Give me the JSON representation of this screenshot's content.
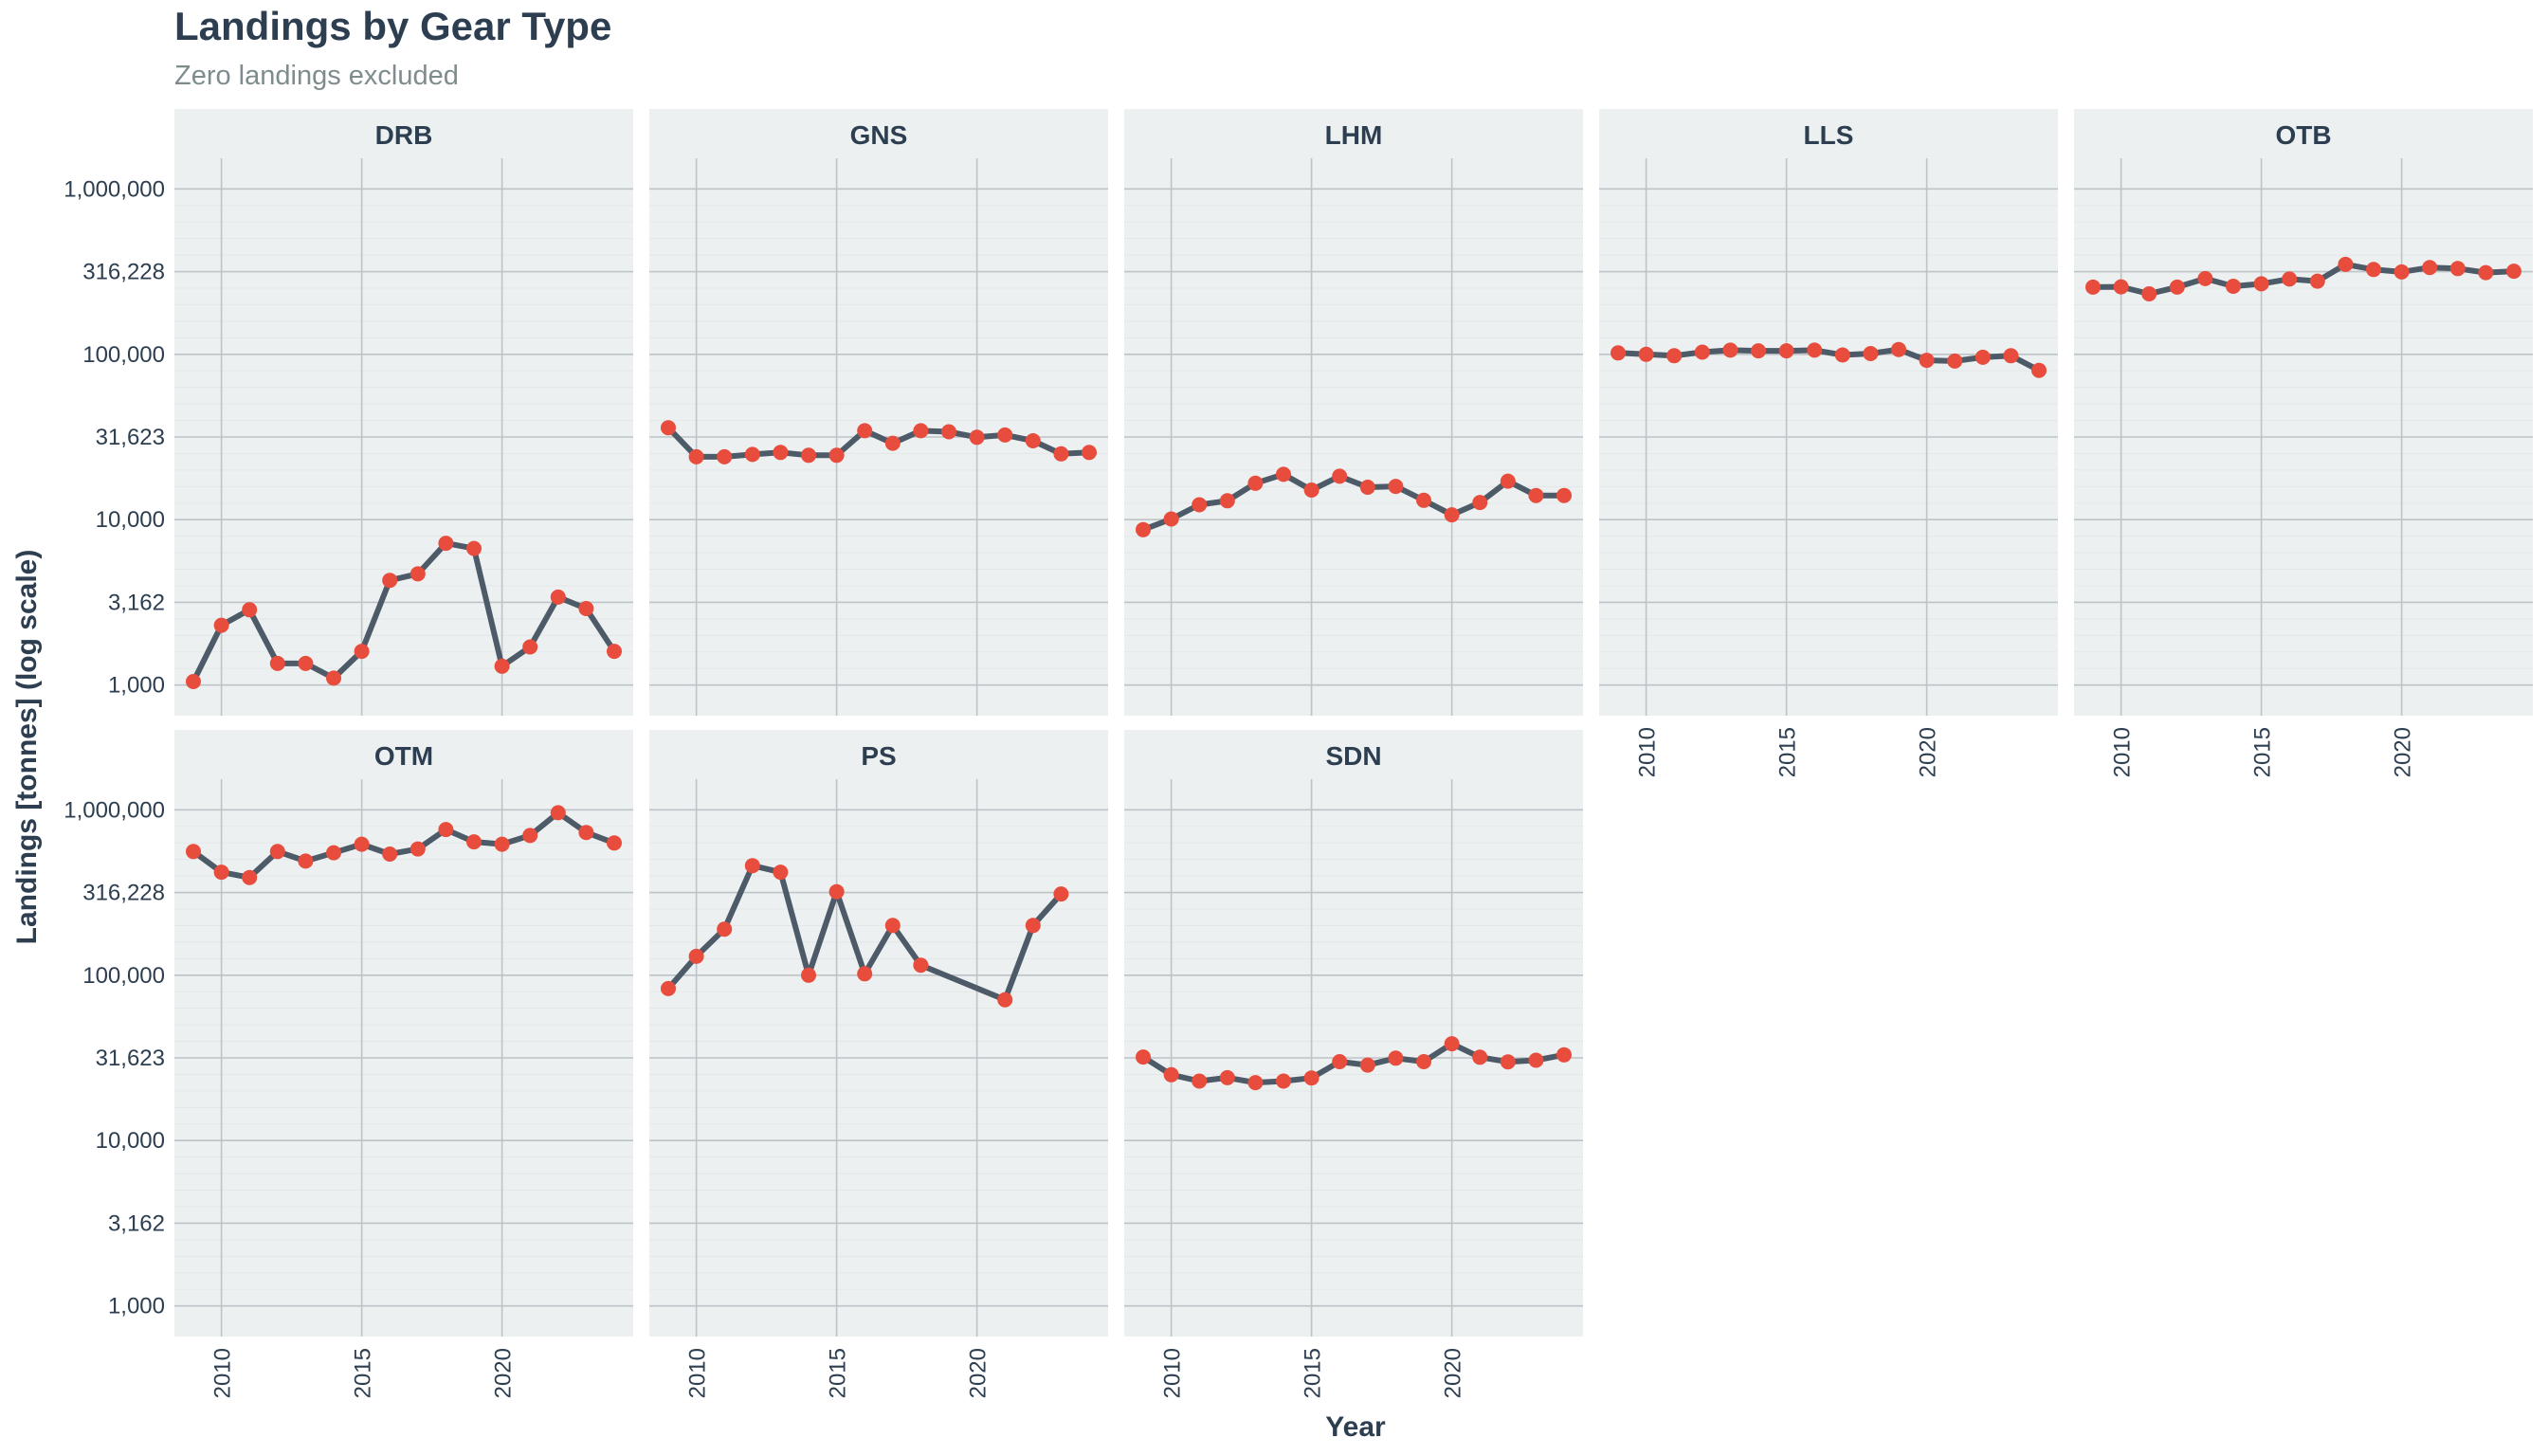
{
  "title": "Landings by Gear Type",
  "subtitle": "Zero landings excluded",
  "colors": {
    "panel_bg": "#ecf0f1",
    "strip_bg": "#ecf0f1",
    "grid_major": "#bdc3c7",
    "grid_minor": "#e3e7e8",
    "line": "#4d5a67",
    "point": "#e74c3c",
    "text": "#2c3e50",
    "subtitle": "#7f8c8d"
  },
  "chart_data": {
    "type": "line",
    "title": "Landings by Gear Type",
    "subtitle": "Zero landings excluded",
    "xlabel": "Year",
    "ylabel": "Landings [tonnes] (log scale)",
    "yscale": "log",
    "ylim": [
      1000,
      1000000
    ],
    "xlim": [
      2009,
      2024
    ],
    "x_ticks": [
      2010,
      2015,
      2020
    ],
    "y_ticks": [
      1000,
      3162,
      10000,
      31623,
      100000,
      316228,
      1000000
    ],
    "y_tick_labels": [
      "1,000",
      "3,162",
      "10,000",
      "31,623",
      "100,000",
      "316,228",
      "1,000,000"
    ],
    "grid": true,
    "legend": "none",
    "facets": [
      "DRB",
      "GNS",
      "LHM",
      "LLS",
      "OTB",
      "OTM",
      "PS",
      "SDN"
    ],
    "series": [
      {
        "name": "DRB",
        "x": [
          2009,
          2010,
          2011,
          2012,
          2013,
          2014,
          2015,
          2016,
          2017,
          2018,
          2019,
          2020,
          2021,
          2022,
          2023,
          2024
        ],
        "values": [
          1050,
          2300,
          2850,
          1350,
          1350,
          1100,
          1600,
          4300,
          4700,
          7200,
          6700,
          1300,
          1700,
          3400,
          2900,
          1600
        ]
      },
      {
        "name": "GNS",
        "x": [
          2009,
          2010,
          2011,
          2012,
          2013,
          2014,
          2015,
          2016,
          2017,
          2018,
          2019,
          2020,
          2021,
          2022,
          2023,
          2024
        ],
        "values": [
          36000,
          24000,
          24000,
          24800,
          25500,
          24500,
          24500,
          34500,
          29000,
          34500,
          34000,
          31500,
          32500,
          30000,
          25000,
          25500
        ]
      },
      {
        "name": "LHM",
        "x": [
          2009,
          2010,
          2011,
          2012,
          2013,
          2014,
          2015,
          2016,
          2017,
          2018,
          2019,
          2020,
          2021,
          2022,
          2023,
          2024
        ],
        "values": [
          8700,
          10100,
          12300,
          13000,
          16600,
          18800,
          15100,
          18300,
          15700,
          15900,
          13100,
          10700,
          12700,
          17100,
          14000,
          14000
        ]
      },
      {
        "name": "LLS",
        "x": [
          2009,
          2010,
          2011,
          2012,
          2013,
          2014,
          2015,
          2016,
          2017,
          2018,
          2019,
          2020,
          2021,
          2022,
          2023,
          2024
        ],
        "values": [
          102000,
          100000,
          98000,
          103000,
          106000,
          105000,
          105000,
          106000,
          99000,
          101000,
          107000,
          92000,
          91000,
          96000,
          98000,
          80000
        ]
      },
      {
        "name": "OTB",
        "x": [
          2009,
          2010,
          2011,
          2012,
          2013,
          2014,
          2015,
          2016,
          2017,
          2018,
          2019,
          2020,
          2021,
          2022,
          2023,
          2024
        ],
        "values": [
          255000,
          256000,
          232000,
          255000,
          287000,
          258000,
          267000,
          285000,
          277000,
          350000,
          326000,
          315000,
          335000,
          330000,
          312000,
          318000
        ]
      },
      {
        "name": "OTM",
        "x": [
          2009,
          2010,
          2011,
          2012,
          2013,
          2014,
          2015,
          2016,
          2017,
          2018,
          2019,
          2020,
          2021,
          2022,
          2023,
          2024
        ],
        "values": [
          560000,
          420000,
          390000,
          560000,
          490000,
          550000,
          620000,
          540000,
          580000,
          760000,
          640000,
          620000,
          700000,
          960000,
          730000,
          630000
        ]
      },
      {
        "name": "PS",
        "x": [
          2009,
          2010,
          2011,
          2012,
          2013,
          2014,
          2015,
          2016,
          2017,
          2018,
          2021,
          2022,
          2023
        ],
        "values": [
          83000,
          130000,
          190000,
          460000,
          420000,
          100000,
          320000,
          102000,
          200000,
          115000,
          71000,
          200000,
          310000
        ]
      },
      {
        "name": "SDN",
        "x": [
          2009,
          2010,
          2011,
          2012,
          2013,
          2014,
          2015,
          2016,
          2017,
          2018,
          2019,
          2020,
          2021,
          2022,
          2023,
          2024
        ],
        "values": [
          32000,
          25000,
          22900,
          24000,
          22400,
          22900,
          23900,
          30000,
          28600,
          31500,
          30000,
          38500,
          31900,
          29900,
          30600,
          33000
        ]
      }
    ]
  }
}
